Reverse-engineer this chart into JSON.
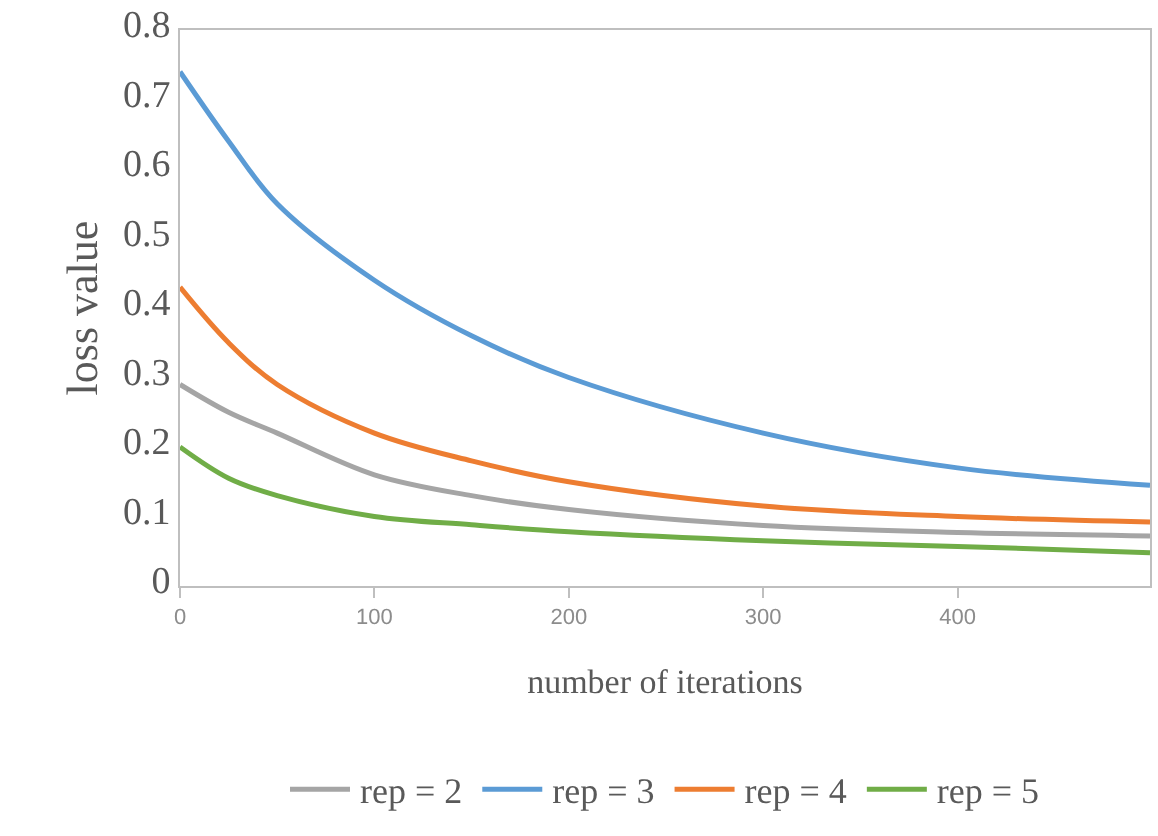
{
  "chart_data": {
    "type": "line",
    "xlabel": "number of iterations",
    "ylabel": "loss value",
    "x": [
      0,
      25,
      50,
      100,
      150,
      200,
      300,
      400,
      499
    ],
    "xlim": [
      0,
      499
    ],
    "xticks": [
      0,
      100,
      200,
      300,
      400
    ],
    "ylim": [
      0,
      0.8
    ],
    "yticks": [
      0,
      0.1,
      0.2,
      0.3,
      0.4,
      0.5,
      0.6,
      0.7,
      0.8
    ],
    "legend": "bottom",
    "marker": "none",
    "line_style": "solid",
    "series": [
      {
        "name": "rep = 2",
        "color": "#a5a5a5",
        "values": [
          0.29,
          0.25,
          0.22,
          0.16,
          0.13,
          0.11,
          0.087,
          0.077,
          0.072
        ]
      },
      {
        "name": "rep = 3",
        "color": "#5b9bd5",
        "values": [
          0.74,
          0.64,
          0.55,
          0.44,
          0.36,
          0.3,
          0.22,
          0.17,
          0.145
        ]
      },
      {
        "name": "rep = 4",
        "color": "#ed7d31",
        "values": [
          0.43,
          0.35,
          0.29,
          0.22,
          0.18,
          0.15,
          0.115,
          0.1,
          0.092
        ]
      },
      {
        "name": "rep = 5",
        "color": "#70ad47",
        "values": [
          0.2,
          0.155,
          0.13,
          0.1,
          0.088,
          0.078,
          0.065,
          0.057,
          0.048
        ]
      }
    ]
  }
}
